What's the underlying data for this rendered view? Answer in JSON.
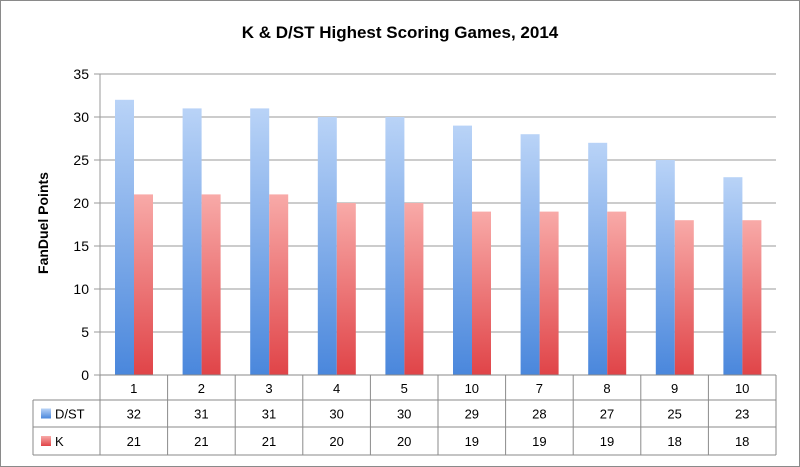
{
  "chart_data": {
    "type": "bar",
    "title": "K & D/ST Highest Scoring Games, 2014",
    "xlabel": "",
    "ylabel": "FanDuel Points",
    "ylim": [
      0,
      35
    ],
    "yticks": [
      0,
      5,
      10,
      15,
      20,
      25,
      30,
      35
    ],
    "grid": true,
    "legend": "data-table-left",
    "categories": [
      "1",
      "2",
      "3",
      "4",
      "5",
      "10",
      "7",
      "8",
      "9",
      "10"
    ],
    "series": [
      {
        "name": "D/ST",
        "values": [
          32,
          31,
          31,
          30,
          30,
          29,
          28,
          27,
          25,
          23
        ],
        "color": "#5b95e2"
      },
      {
        "name": "K",
        "values": [
          21,
          21,
          21,
          20,
          20,
          19,
          19,
          19,
          18,
          18
        ],
        "color": "#e8565a"
      }
    ]
  }
}
